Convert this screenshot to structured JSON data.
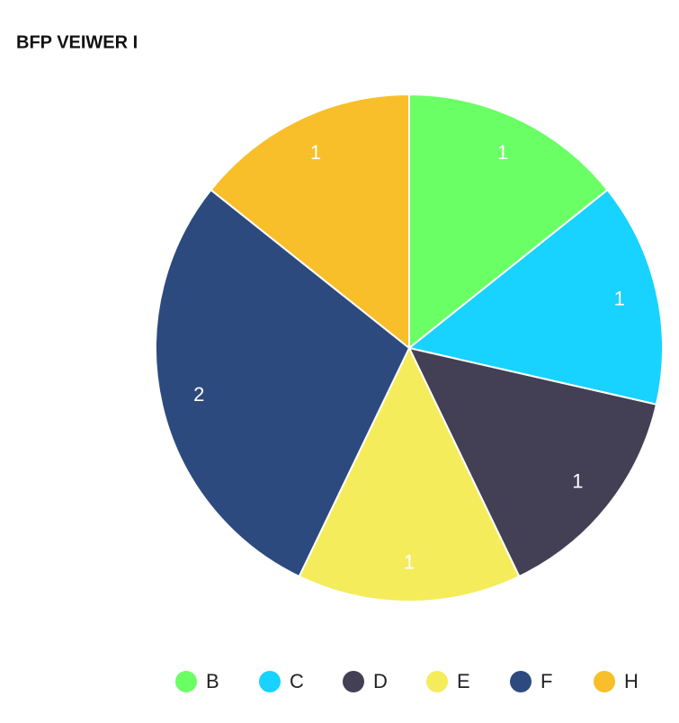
{
  "chart_data": {
    "type": "pie",
    "title": "BFP VEIWER I",
    "categories": [
      "B",
      "C",
      "D",
      "E",
      "F",
      "H"
    ],
    "values": [
      1,
      1,
      1,
      1,
      2,
      1
    ],
    "colors": [
      "#6bff66",
      "#18d2ff",
      "#434055",
      "#f5ec5c",
      "#2d4a7f",
      "#f8bf2a"
    ]
  }
}
